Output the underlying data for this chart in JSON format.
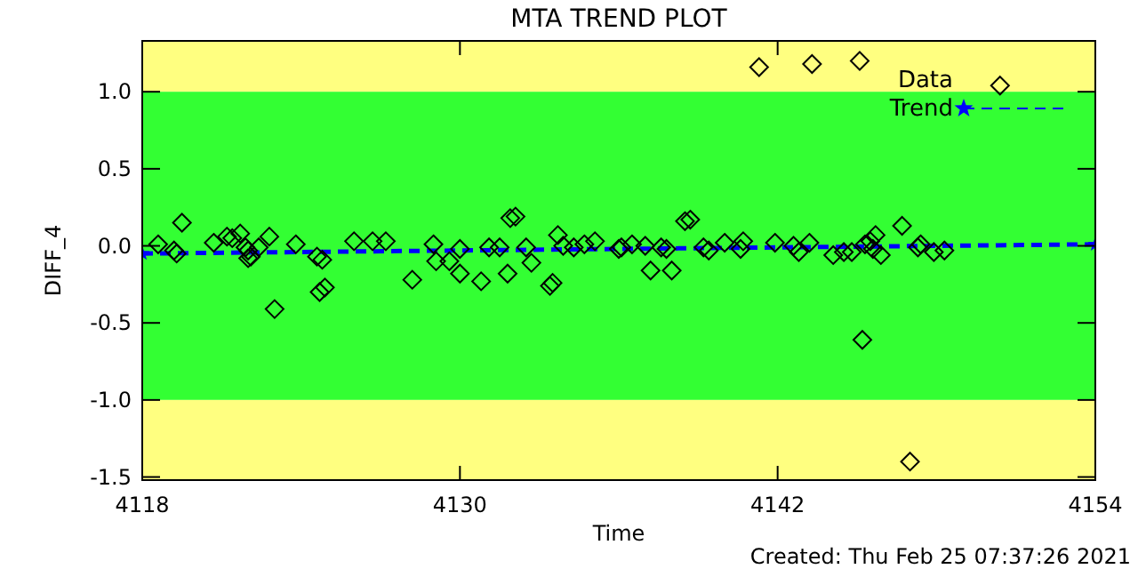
{
  "chart_data": {
    "type": "scatter",
    "title": "MTA TREND PLOT",
    "xlabel": "Time",
    "ylabel": "DIFF_4",
    "annotations": [
      "Created: Thu Feb 25 07:37:26 2021"
    ],
    "xlim": [
      4118,
      4154
    ],
    "xticks": [
      4118,
      4130,
      4142,
      4154
    ],
    "ylim": [
      -1.52,
      1.33
    ],
    "yticks": [
      -1.5,
      {
        "value": -1,
        "label": "-1.0"
      },
      -0.5,
      {
        "value": 0,
        "label": "0.0"
      },
      0.5,
      {
        "value": 1,
        "label": "1.0"
      }
    ],
    "bands": [
      {
        "axis": "y",
        "from": 1,
        "to": 1.33,
        "color": "#ffff80"
      },
      {
        "axis": "y",
        "from": -1,
        "to": 1,
        "color": "#33ff33"
      },
      {
        "axis": "y",
        "from": -1.52,
        "to": -1,
        "color": "#ffff80"
      }
    ],
    "legend": "top right",
    "series": [
      {
        "name": "Data",
        "type": "scatter",
        "marker": "diamond",
        "color": "#000000",
        "x": [
          4118.6,
          4119.2,
          4119.3,
          4119.5,
          4120.7,
          4121.2,
          4121.4,
          4121.7,
          4121.9,
          4122.0,
          4122.1,
          4122.4,
          4122.0,
          4122.8,
          4123.0,
          4123.8,
          4124.6,
          4124.8,
          4124.7,
          4124.9,
          4126.0,
          4126.7,
          4127.2,
          4128.2,
          4129.0,
          4129.1,
          4129.6,
          4130.0,
          4130.0,
          4130.8,
          4131.1,
          4131.5,
          4131.8,
          4131.9,
          4132.1,
          4132.5,
          4132.7,
          4133.4,
          4133.5,
          4133.7,
          4133.9,
          4134.3,
          4134.7,
          4135.1,
          4136.0,
          4138.7,
          4138.5,
          4136.1,
          4136.5,
          4137.0,
          4137.2,
          4137.6,
          4137.8,
          4138.0,
          4139.2,
          4139.4,
          4140.0,
          4140.6,
          4140.7,
          4141.9,
          4142.6,
          4142.8,
          4143.2,
          4144.1,
          4144.5,
          4144.8,
          4145.3,
          4145.5,
          4145.7,
          4145.6,
          4145.9,
          4145.2,
          4146.7,
          4147.0,
          4147.4,
          4147.3,
          4147.9,
          4148.3,
          4141.3,
          4143.3,
          4145.1,
          4150.4
        ],
        "values": [
          0.01,
          -0.03,
          -0.05,
          0.15,
          0.02,
          0.06,
          0.05,
          0.08,
          -0.01,
          -0.03,
          -0.07,
          -0.01,
          -0.08,
          0.06,
          -0.41,
          0.01,
          -0.07,
          -0.09,
          -0.3,
          -0.27,
          0.03,
          0.03,
          0.03,
          -0.22,
          0.01,
          -0.1,
          -0.1,
          -0.02,
          -0.18,
          -0.23,
          -0.01,
          -0.01,
          -0.18,
          0.18,
          0.19,
          -0.01,
          -0.11,
          -0.26,
          -0.24,
          0.07,
          0,
          -0.01,
          0.01,
          0.03,
          -0.02,
          0.17,
          0.16,
          -0.01,
          0.01,
          0,
          -0.16,
          -0.01,
          -0.02,
          -0.16,
          -0.01,
          -0.03,
          0.02,
          -0.02,
          0.03,
          0.02,
          0,
          -0.04,
          0.02,
          -0.06,
          -0.04,
          -0.04,
          0.01,
          0.03,
          0.07,
          -0.02,
          -0.06,
          -0.61,
          0.13,
          -1.4,
          0.01,
          -0.01,
          -0.04,
          -0.03,
          1.16,
          1.18,
          1.2,
          1.04
        ]
      },
      {
        "name": "Trend",
        "type": "line",
        "line_style": "dashed",
        "marker": "star",
        "color": "#0000ff",
        "x": [
          4118,
          4154
        ],
        "values": [
          -0.05,
          0.01
        ]
      }
    ]
  }
}
